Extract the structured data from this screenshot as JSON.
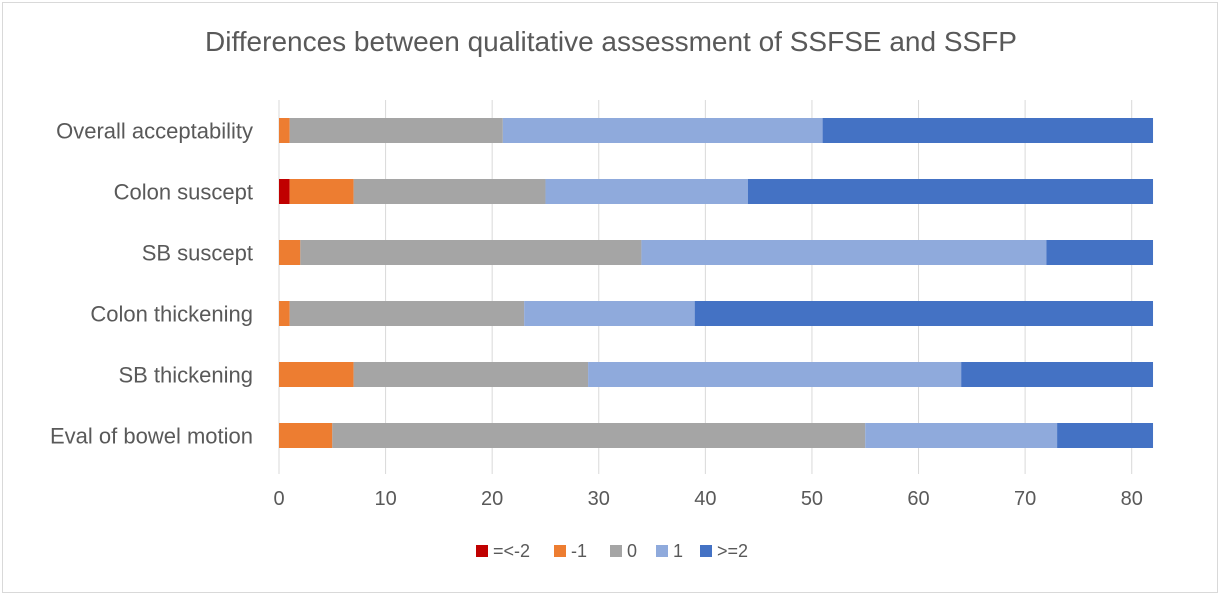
{
  "chart_data": {
    "type": "bar",
    "orientation": "horizontal",
    "stacked": true,
    "title": "Differences between qualitative assessment of SSFSE and SSFP",
    "xlabel": "",
    "ylabel": "",
    "xlim": [
      0,
      85
    ],
    "xticks": [
      0,
      10,
      20,
      30,
      40,
      50,
      60,
      70,
      80
    ],
    "grid": true,
    "legend_position": "bottom",
    "categories": [
      "Overall acceptability",
      "Colon suscept",
      "SB suscept",
      "Colon thickening",
      "SB thickening",
      "Eval of bowel motion"
    ],
    "series": [
      {
        "name": "=<-2",
        "color": "#c00000",
        "values": [
          0,
          1,
          0,
          0,
          0,
          0
        ]
      },
      {
        "name": "-1",
        "color": "#ed7d31",
        "values": [
          1,
          6,
          2,
          1,
          7,
          5
        ]
      },
      {
        "name": "0",
        "color": "#a5a5a5",
        "values": [
          20,
          18,
          32,
          22,
          22,
          50
        ]
      },
      {
        "name": "1",
        "color": "#8faadc",
        "values": [
          30,
          19,
          38,
          16,
          35,
          18
        ]
      },
      {
        "name": ">=2",
        "color": "#4472c4",
        "values": [
          31,
          38,
          10,
          43,
          18,
          9
        ]
      }
    ]
  }
}
